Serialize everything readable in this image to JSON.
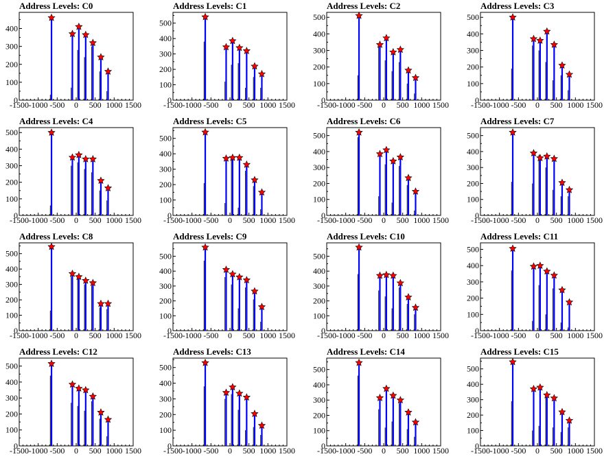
{
  "figure": {
    "xticks": [
      -1500,
      -1000,
      -500,
      0,
      500,
      1000,
      1500
    ],
    "yticks": [
      0,
      100,
      200,
      300,
      400,
      500
    ]
  },
  "chart_data": [
    {
      "type": "bar",
      "title": "Address Levels: C0",
      "xlim": [
        -1500,
        1500
      ],
      "ylim": [
        0,
        490
      ],
      "levels": [
        -650,
        -100,
        70,
        250,
        440,
        650,
        840
      ],
      "peaks": [
        460,
        370,
        410,
        365,
        320,
        240,
        160
      ],
      "sidebars": [
        [
          -650,
          30
        ],
        [
          -100,
          70
        ],
        [
          70,
          280
        ],
        [
          250,
          240
        ],
        [
          440,
          300
        ],
        [
          650,
          160
        ],
        [
          840,
          50
        ]
      ]
    },
    {
      "type": "bar",
      "title": "Address Levels: C1",
      "xlim": [
        -1500,
        1500
      ],
      "ylim": [
        0,
        570
      ],
      "levels": [
        -650,
        -100,
        70,
        250,
        440,
        650,
        840
      ],
      "peaks": [
        540,
        345,
        385,
        340,
        320,
        220,
        170
      ],
      "sidebars": [
        [
          -650,
          380
        ],
        [
          -100,
          120
        ],
        [
          70,
          230
        ],
        [
          250,
          240
        ],
        [
          440,
          80
        ],
        [
          650,
          150
        ],
        [
          840,
          80
        ]
      ]
    },
    {
      "type": "bar",
      "title": "Address Levels: C2",
      "xlim": [
        -1500,
        1500
      ],
      "ylim": [
        0,
        530
      ],
      "levels": [
        -650,
        -100,
        70,
        250,
        440,
        650,
        840
      ],
      "peaks": [
        510,
        335,
        375,
        290,
        305,
        180,
        135
      ],
      "sidebars": [
        [
          -650,
          150
        ],
        [
          -100,
          320
        ],
        [
          70,
          240
        ],
        [
          250,
          175
        ],
        [
          440,
          230
        ],
        [
          650,
          100
        ],
        [
          840,
          40
        ]
      ]
    },
    {
      "type": "bar",
      "title": "Address Levels: C3",
      "xlim": [
        -1500,
        1500
      ],
      "ylim": [
        0,
        530
      ],
      "levels": [
        -650,
        -100,
        70,
        250,
        440,
        650,
        840
      ],
      "peaks": [
        500,
        370,
        360,
        415,
        335,
        210,
        155
      ],
      "sidebars": [
        [
          -650,
          190
        ],
        [
          -100,
          330
        ],
        [
          70,
          300
        ],
        [
          250,
          230
        ],
        [
          440,
          120
        ],
        [
          650,
          150
        ],
        [
          840,
          60
        ]
      ]
    },
    {
      "type": "bar",
      "title": "Address Levels: C4",
      "xlim": [
        -1500,
        1500
      ],
      "ylim": [
        0,
        530
      ],
      "levels": [
        -650,
        -100,
        70,
        250,
        440,
        650,
        840
      ],
      "peaks": [
        500,
        350,
        365,
        340,
        340,
        210,
        165
      ],
      "sidebars": [
        [
          -650,
          60
        ],
        [
          -100,
          300
        ],
        [
          70,
          320
        ],
        [
          250,
          280
        ],
        [
          440,
          260
        ],
        [
          650,
          150
        ],
        [
          840,
          90
        ]
      ]
    },
    {
      "type": "bar",
      "title": "Address Levels: C5",
      "xlim": [
        -1500,
        1500
      ],
      "ylim": [
        0,
        570
      ],
      "levels": [
        -650,
        -100,
        70,
        250,
        440,
        650,
        840
      ],
      "peaks": [
        540,
        370,
        375,
        375,
        330,
        230,
        150
      ],
      "sidebars": [
        [
          -650,
          210
        ],
        [
          -100,
          80
        ],
        [
          70,
          360
        ],
        [
          250,
          50
        ],
        [
          440,
          290
        ],
        [
          650,
          190
        ],
        [
          840,
          40
        ]
      ]
    },
    {
      "type": "bar",
      "title": "Address Levels: C6",
      "xlim": [
        -1500,
        1500
      ],
      "ylim": [
        0,
        550
      ],
      "levels": [
        -650,
        -100,
        70,
        250,
        440,
        650,
        840
      ],
      "peaks": [
        520,
        385,
        410,
        340,
        365,
        235,
        150
      ],
      "sidebars": [
        [
          -650,
          490
        ],
        [
          -100,
          120
        ],
        [
          70,
          320
        ],
        [
          250,
          80
        ],
        [
          440,
          310
        ],
        [
          650,
          190
        ],
        [
          840,
          30
        ]
      ]
    },
    {
      "type": "bar",
      "title": "Address Levels: C7",
      "xlim": [
        -1500,
        1500
      ],
      "ylim": [
        0,
        550
      ],
      "levels": [
        -650,
        -100,
        70,
        250,
        440,
        650,
        840
      ],
      "peaks": [
        520,
        390,
        360,
        370,
        355,
        205,
        160
      ],
      "sidebars": [
        [
          -650,
          210
        ],
        [
          -100,
          200
        ],
        [
          70,
          380
        ],
        [
          250,
          300
        ],
        [
          440,
          160
        ],
        [
          650,
          120
        ],
        [
          840,
          120
        ]
      ]
    },
    {
      "type": "bar",
      "title": "Address Levels: C8",
      "xlim": [
        -1500,
        1500
      ],
      "ylim": [
        0,
        570
      ],
      "levels": [
        -650,
        -100,
        70,
        250,
        440,
        650,
        840
      ],
      "peaks": [
        545,
        370,
        350,
        325,
        310,
        175,
        175
      ],
      "sidebars": [
        [
          -650,
          130
        ],
        [
          -100,
          350
        ],
        [
          70,
          340
        ],
        [
          250,
          300
        ],
        [
          440,
          290
        ],
        [
          650,
          150
        ],
        [
          840,
          140
        ]
      ]
    },
    {
      "type": "bar",
      "title": "Address Levels: C9",
      "xlim": [
        -1500,
        1500
      ],
      "ylim": [
        0,
        590
      ],
      "levels": [
        -650,
        -100,
        70,
        250,
        440,
        650,
        840
      ],
      "peaks": [
        560,
        410,
        380,
        360,
        340,
        265,
        160
      ],
      "sidebars": [
        [
          -650,
          470
        ],
        [
          -100,
          360
        ],
        [
          70,
          310
        ],
        [
          250,
          150
        ],
        [
          440,
          290
        ],
        [
          650,
          210
        ],
        [
          840,
          60
        ]
      ]
    },
    {
      "type": "bar",
      "title": "Address Levels: C10",
      "xlim": [
        -1500,
        1500
      ],
      "ylim": [
        0,
        590
      ],
      "levels": [
        -650,
        -100,
        70,
        250,
        440,
        650,
        840
      ],
      "peaks": [
        560,
        370,
        375,
        370,
        320,
        225,
        155
      ],
      "sidebars": [
        [
          -650,
          380
        ],
        [
          -100,
          270
        ],
        [
          70,
          230
        ],
        [
          250,
          150
        ],
        [
          440,
          290
        ],
        [
          650,
          180
        ],
        [
          840,
          110
        ]
      ]
    },
    {
      "type": "bar",
      "title": "Address Levels: C11",
      "xlim": [
        -1500,
        1500
      ],
      "ylim": [
        0,
        540
      ],
      "levels": [
        -650,
        -100,
        70,
        250,
        440,
        650,
        840
      ],
      "peaks": [
        505,
        395,
        400,
        365,
        340,
        250,
        175
      ],
      "sidebars": [
        [
          -650,
          370
        ],
        [
          -100,
          60
        ],
        [
          70,
          280
        ],
        [
          250,
          100
        ],
        [
          440,
          260
        ],
        [
          650,
          50
        ],
        [
          840,
          20
        ]
      ]
    },
    {
      "type": "bar",
      "title": "Address Levels: C12",
      "xlim": [
        -1500,
        1500
      ],
      "ylim": [
        0,
        550
      ],
      "levels": [
        -650,
        -100,
        70,
        250,
        440,
        650,
        840
      ],
      "peaks": [
        515,
        385,
        360,
        350,
        310,
        210,
        165
      ],
      "sidebars": [
        [
          -650,
          440
        ],
        [
          -100,
          270
        ],
        [
          70,
          250
        ],
        [
          250,
          220
        ],
        [
          440,
          280
        ],
        [
          650,
          170
        ],
        [
          840,
          60
        ]
      ]
    },
    {
      "type": "bar",
      "title": "Address Levels: C13",
      "xlim": [
        -1500,
        1500
      ],
      "ylim": [
        0,
        560
      ],
      "levels": [
        -650,
        -100,
        70,
        250,
        440,
        650,
        840
      ],
      "peaks": [
        530,
        340,
        375,
        335,
        310,
        205,
        130
      ],
      "sidebars": [
        [
          -650,
          380
        ],
        [
          -100,
          300
        ],
        [
          70,
          330
        ],
        [
          250,
          230
        ],
        [
          440,
          100
        ],
        [
          650,
          120
        ],
        [
          840,
          70
        ]
      ]
    },
    {
      "type": "bar",
      "title": "Address Levels: C14",
      "xlim": [
        -1500,
        1500
      ],
      "ylim": [
        0,
        575
      ],
      "levels": [
        -650,
        -100,
        70,
        250,
        440,
        650,
        840
      ],
      "peaks": [
        545,
        315,
        375,
        330,
        300,
        220,
        155
      ],
      "sidebars": [
        [
          -650,
          460
        ],
        [
          -100,
          240
        ],
        [
          70,
          120
        ],
        [
          250,
          160
        ],
        [
          440,
          280
        ],
        [
          650,
          110
        ],
        [
          840,
          60
        ]
      ]
    },
    {
      "type": "bar",
      "title": "Address Levels: C15",
      "xlim": [
        -1500,
        1500
      ],
      "ylim": [
        0,
        570
      ],
      "levels": [
        -650,
        -100,
        70,
        250,
        440,
        650,
        840
      ],
      "peaks": [
        545,
        370,
        380,
        330,
        310,
        220,
        165
      ],
      "sidebars": [
        [
          -650,
          290
        ],
        [
          -100,
          100
        ],
        [
          70,
          130
        ],
        [
          250,
          320
        ],
        [
          440,
          120
        ],
        [
          650,
          90
        ],
        [
          840,
          120
        ]
      ]
    }
  ],
  "colors": {
    "bar": "#0000ff",
    "secondary_bar": "#000000",
    "marker": "#ff0000"
  }
}
